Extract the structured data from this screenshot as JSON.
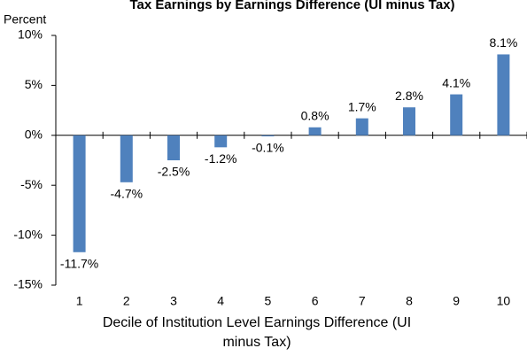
{
  "chart_data": {
    "type": "bar",
    "title": "Tax Earnings by Earnings Difference (UI minus Tax)",
    "y_label": "Percent",
    "x_label": "Decile of Institution Level Earnings Difference (UI minus Tax)",
    "categories": [
      "1",
      "2",
      "3",
      "4",
      "5",
      "6",
      "7",
      "8",
      "9",
      "10"
    ],
    "values": [
      -11.7,
      -4.7,
      -2.5,
      -1.2,
      -0.1,
      0.8,
      1.7,
      2.8,
      4.1,
      8.1
    ],
    "value_labels": [
      "-11.7%",
      "-4.7%",
      "-2.5%",
      "-1.2%",
      "-0.1%",
      "0.8%",
      "1.7%",
      "2.8%",
      "4.1%",
      "8.1%"
    ],
    "color": "#4f81bd",
    "ylim": [
      -15,
      10
    ],
    "yticks": [
      {
        "value": -15,
        "label": "-15%"
      },
      {
        "value": -10,
        "label": "-10%"
      },
      {
        "value": -5,
        "label": "-5%"
      },
      {
        "value": 0,
        "label": "0%"
      },
      {
        "value": 5,
        "label": "5%"
      },
      {
        "value": 10,
        "label": "10%"
      }
    ],
    "grid": false
  }
}
